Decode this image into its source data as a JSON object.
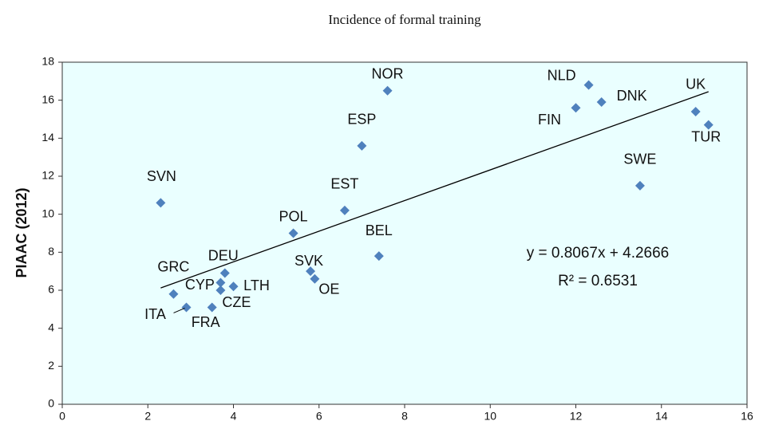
{
  "chart_data": {
    "type": "scatter",
    "title": "Incidence of formal training",
    "y_label": "PIAAC (2012)",
    "point_labels": [
      "SVN",
      "GRC",
      "ITA",
      "FRA",
      "CYP",
      "CZE",
      "DEU",
      "LTH",
      "POL",
      "SVK",
      "OE",
      "EST",
      "BEL",
      "ESP",
      "NOR",
      "FIN",
      "NLD",
      "DNK",
      "SWE",
      "UK",
      "TUR"
    ],
    "x": [
      2.3,
      2.6,
      2.9,
      3.5,
      3.7,
      3.7,
      3.8,
      4.0,
      5.4,
      5.8,
      5.9,
      6.6,
      7.4,
      7.0,
      7.6,
      12.0,
      12.3,
      12.6,
      13.5,
      14.8,
      15.1
    ],
    "values": [
      10.6,
      5.8,
      5.1,
      5.1,
      6.4,
      6.0,
      6.9,
      6.2,
      9.0,
      7.0,
      6.6,
      10.2,
      7.8,
      13.6,
      16.5,
      15.6,
      16.8,
      15.9,
      11.5,
      15.4,
      14.7
    ],
    "color": "#4f81bd",
    "xlim": [
      0,
      16
    ],
    "xticks": [
      0,
      2,
      4,
      6,
      8,
      10,
      12,
      14,
      16
    ],
    "ylim": [
      0,
      18
    ],
    "yticks": [
      0,
      2,
      4,
      6,
      8,
      10,
      12,
      14,
      16,
      18
    ],
    "trendline": {
      "slope": 0.8067,
      "intercept": 4.2666,
      "equation": "y = 0.8067x + 4.2666",
      "r_squared": "R² = 0.6531"
    },
    "plot_background": "#eaffff"
  }
}
